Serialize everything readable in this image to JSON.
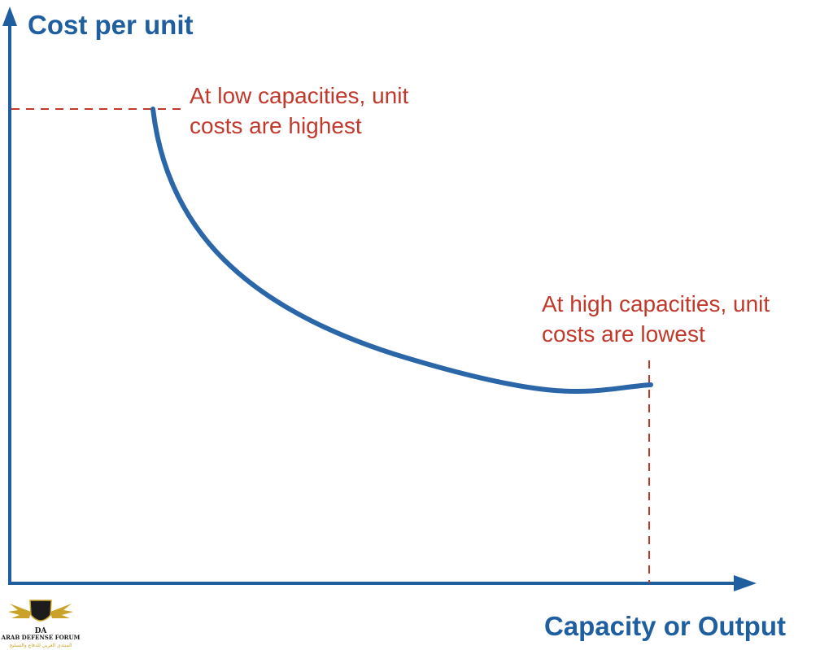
{
  "diagram": {
    "y_axis_label": "Cost per unit",
    "x_axis_label": "Capacity or Output",
    "annotation_low": {
      "line1": "At low capacities, unit",
      "line2": "costs are highest"
    },
    "annotation_high": {
      "line1": "At high capacities, unit",
      "line2": "costs are lowest"
    }
  },
  "watermark": {
    "monogram": "DA",
    "name": "ARAB DEFENSE FORUM",
    "arabic": "المنتدى العربي للدفاع والتسليح"
  },
  "colors": {
    "axis": "#1f5fa0",
    "curve": "#2a66a8",
    "annotation": "#c0392b",
    "dashed": "#c0392b"
  }
}
